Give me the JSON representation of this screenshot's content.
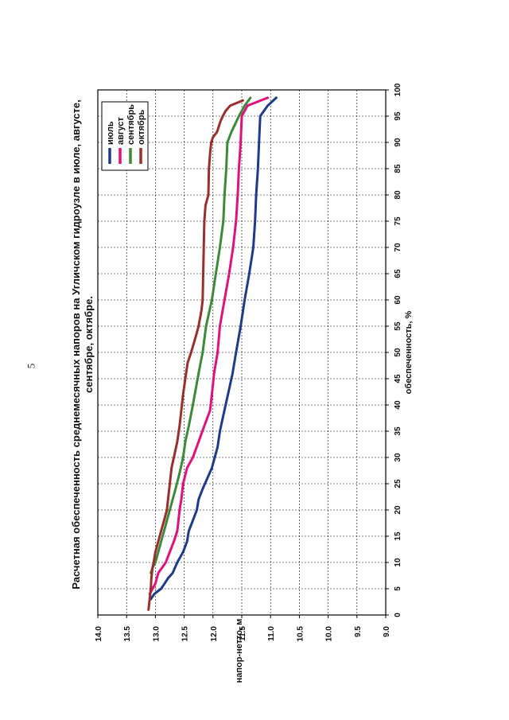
{
  "page": {
    "number": "5"
  },
  "chart_data": {
    "type": "line",
    "orientation": "rotated-90-ccw",
    "title": "Расчетная обеспеченность среднемесячных напоров на Угличском гидроузле в июле, августе, сентябре, октябре.",
    "title_lines": [
      "Расчетная обеспеченность среднемесячных напоров на Угличском гидроузле в июле, августе,",
      "сентябре, октябре."
    ],
    "xlabel": "обеспеченность, %",
    "ylabel": "напор-нетто, м",
    "xlim": [
      0,
      100
    ],
    "ylim": [
      9.0,
      14.0
    ],
    "x_ticks": [
      "0",
      "5",
      "10",
      "15",
      "20",
      "25",
      "30",
      "35",
      "40",
      "45",
      "50",
      "55",
      "60",
      "65",
      "70",
      "75",
      "80",
      "85",
      "90",
      "95",
      "100"
    ],
    "y_ticks": [
      "14.0",
      "13.5",
      "13.0",
      "12.5",
      "12.0",
      "11.5",
      "11.0",
      "10.5",
      "10.0",
      "9.5",
      "9.0"
    ],
    "grid": true,
    "legend": {
      "position": "top-right"
    },
    "series": [
      {
        "name": "июль",
        "color": "#1f3a8a",
        "x": [
          3,
          4,
          5,
          6,
          7,
          8,
          10,
          12,
          14,
          16,
          18,
          20,
          22,
          24,
          26,
          28,
          30,
          32,
          35,
          38,
          40,
          43,
          46,
          50,
          55,
          60,
          65,
          70,
          75,
          80,
          85,
          90,
          95,
          97,
          98.5
        ],
        "y": [
          13.08,
          13.02,
          12.9,
          12.84,
          12.78,
          12.7,
          12.62,
          12.52,
          12.45,
          12.42,
          12.35,
          12.28,
          12.25,
          12.18,
          12.1,
          12.02,
          11.97,
          11.92,
          11.88,
          11.82,
          11.78,
          11.72,
          11.66,
          11.6,
          11.52,
          11.45,
          11.37,
          11.3,
          11.27,
          11.25,
          11.22,
          11.2,
          11.18,
          11.05,
          10.9
        ]
      },
      {
        "name": "август",
        "color": "#e0117a",
        "x": [
          4,
          5,
          6,
          8,
          10,
          12,
          14,
          16,
          18,
          20,
          22,
          25,
          28,
          30,
          33,
          36,
          39,
          42,
          46,
          50,
          55,
          60,
          65,
          70,
          75,
          80,
          85,
          90,
          95,
          97,
          98.5
        ],
        "y": [
          13.1,
          13.05,
          13.0,
          12.95,
          12.82,
          12.75,
          12.68,
          12.62,
          12.6,
          12.58,
          12.55,
          12.52,
          12.45,
          12.35,
          12.25,
          12.15,
          12.05,
          12.02,
          11.98,
          11.92,
          11.88,
          11.8,
          11.72,
          11.65,
          11.6,
          11.57,
          11.55,
          11.52,
          11.5,
          11.4,
          11.05
        ]
      },
      {
        "name": "сентябрь",
        "color": "#3a8a3a",
        "x": [
          8,
          9,
          10,
          12,
          14,
          16,
          18,
          20,
          22,
          24,
          27,
          30,
          33,
          36,
          40,
          43,
          46,
          50,
          55,
          60,
          65,
          70,
          75,
          80,
          85,
          90,
          92,
          95,
          97,
          98.5
        ],
        "y": [
          13.08,
          13.05,
          13.0,
          12.95,
          12.9,
          12.85,
          12.8,
          12.75,
          12.7,
          12.65,
          12.58,
          12.52,
          12.48,
          12.42,
          12.35,
          12.3,
          12.25,
          12.18,
          12.12,
          12.02,
          11.95,
          11.88,
          11.82,
          11.8,
          11.77,
          11.75,
          11.68,
          11.55,
          11.45,
          11.35
        ]
      },
      {
        "name": "октябрь",
        "color": "#9b2d2d",
        "x": [
          1,
          3,
          5,
          7,
          9,
          10,
          12,
          14,
          16,
          18,
          20,
          22,
          25,
          28,
          30,
          33,
          36,
          39,
          42,
          45,
          48,
          50,
          53,
          55,
          58,
          60,
          65,
          70,
          75,
          78,
          80,
          85,
          88,
          90,
          91,
          92,
          94,
          95,
          96,
          97,
          98
        ],
        "y": [
          13.12,
          13.1,
          13.08,
          13.07,
          13.05,
          13.03,
          13.0,
          12.95,
          12.9,
          12.85,
          12.8,
          12.78,
          12.75,
          12.72,
          12.68,
          12.62,
          12.58,
          12.55,
          12.52,
          12.48,
          12.44,
          12.38,
          12.3,
          12.25,
          12.2,
          12.18,
          12.17,
          12.16,
          12.15,
          12.13,
          12.08,
          12.07,
          12.05,
          12.03,
          12.0,
          11.93,
          11.87,
          11.83,
          11.78,
          11.7,
          11.48
        ]
      }
    ]
  }
}
